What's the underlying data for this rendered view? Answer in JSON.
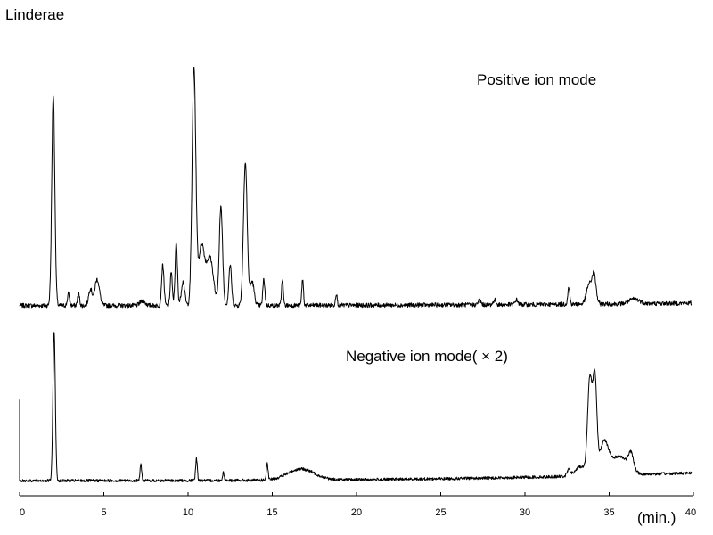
{
  "chart_data": {
    "type": "line",
    "title": "Linderae",
    "xlabel": "(min.)",
    "ylabel": "",
    "xlim": [
      0,
      40
    ],
    "x_ticks": [
      "0",
      "5",
      "10",
      "15",
      "20",
      "25",
      "30",
      "35",
      "40"
    ],
    "grid": false,
    "legend": "none",
    "line_color": "#000000",
    "series": [
      {
        "name": "Positive ion mode",
        "baseline": 0.02,
        "end_baseline": 0.03,
        "peaks": [
          {
            "x": 2.0,
            "h": 0.88,
            "w": 0.09
          },
          {
            "x": 2.9,
            "h": 0.05,
            "w": 0.06
          },
          {
            "x": 3.5,
            "h": 0.05,
            "w": 0.06
          },
          {
            "x": 4.2,
            "h": 0.07,
            "w": 0.1
          },
          {
            "x": 4.6,
            "h": 0.11,
            "w": 0.14
          },
          {
            "x": 7.3,
            "h": 0.02,
            "w": 0.15
          },
          {
            "x": 8.5,
            "h": 0.17,
            "w": 0.07
          },
          {
            "x": 9.0,
            "h": 0.14,
            "w": 0.06
          },
          {
            "x": 9.3,
            "h": 0.26,
            "w": 0.07
          },
          {
            "x": 9.7,
            "h": 0.1,
            "w": 0.1
          },
          {
            "x": 10.35,
            "h": 0.99,
            "w": 0.11
          },
          {
            "x": 10.8,
            "h": 0.25,
            "w": 0.18
          },
          {
            "x": 11.3,
            "h": 0.2,
            "w": 0.2
          },
          {
            "x": 11.95,
            "h": 0.41,
            "w": 0.1
          },
          {
            "x": 12.5,
            "h": 0.17,
            "w": 0.08
          },
          {
            "x": 13.4,
            "h": 0.6,
            "w": 0.11
          },
          {
            "x": 13.8,
            "h": 0.1,
            "w": 0.12
          },
          {
            "x": 14.5,
            "h": 0.11,
            "w": 0.06
          },
          {
            "x": 15.6,
            "h": 0.11,
            "w": 0.05
          },
          {
            "x": 16.8,
            "h": 0.11,
            "w": 0.05
          },
          {
            "x": 18.8,
            "h": 0.05,
            "w": 0.05
          },
          {
            "x": 27.3,
            "h": 0.02,
            "w": 0.08
          },
          {
            "x": 28.2,
            "h": 0.02,
            "w": 0.08
          },
          {
            "x": 29.5,
            "h": 0.02,
            "w": 0.08
          },
          {
            "x": 32.6,
            "h": 0.07,
            "w": 0.06
          },
          {
            "x": 33.8,
            "h": 0.08,
            "w": 0.15
          },
          {
            "x": 34.1,
            "h": 0.12,
            "w": 0.12
          },
          {
            "x": 36.5,
            "h": 0.02,
            "w": 0.3
          }
        ]
      },
      {
        "name": "Negative ion mode( × 2)",
        "baseline": 0.05,
        "end_baseline": 0.1,
        "start_spike": 0.5,
        "peaks": [
          {
            "x": 2.05,
            "h": 0.95,
            "w": 0.07
          },
          {
            "x": 7.2,
            "h": 0.1,
            "w": 0.05
          },
          {
            "x": 10.5,
            "h": 0.14,
            "w": 0.05
          },
          {
            "x": 12.1,
            "h": 0.05,
            "w": 0.05
          },
          {
            "x": 14.7,
            "h": 0.1,
            "w": 0.05
          },
          {
            "x": 16.7,
            "h": 0.07,
            "w": 0.8
          },
          {
            "x": 32.6,
            "h": 0.04,
            "w": 0.1
          },
          {
            "x": 33.3,
            "h": 0.06,
            "w": 0.3
          },
          {
            "x": 33.85,
            "h": 0.6,
            "w": 0.13
          },
          {
            "x": 34.15,
            "h": 0.6,
            "w": 0.12
          },
          {
            "x": 34.7,
            "h": 0.2,
            "w": 0.25
          },
          {
            "x": 35.6,
            "h": 0.12,
            "w": 0.5
          },
          {
            "x": 36.3,
            "h": 0.1,
            "w": 0.15
          }
        ]
      }
    ]
  }
}
